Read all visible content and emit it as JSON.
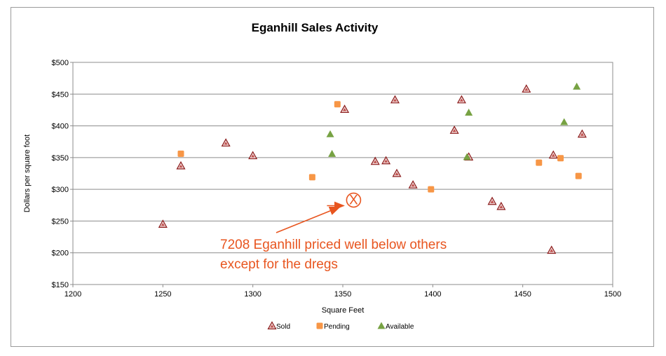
{
  "chart_data": {
    "type": "scatter",
    "title": "Eganhill Sales Activity",
    "xlabel": "Square Feet",
    "ylabel": "Dollars per square foot",
    "xlim": [
      1200,
      1500
    ],
    "ylim": [
      150,
      500
    ],
    "x_ticks": [
      "1200",
      "1250",
      "1300",
      "1350",
      "1400",
      "1450",
      "1500"
    ],
    "y_ticks": [
      "$150",
      "$200",
      "$250",
      "$300",
      "$350",
      "$400",
      "$450",
      "$500"
    ],
    "grid": true,
    "legend_position": "bottom",
    "series": [
      {
        "name": "Sold",
        "color": "#c0504d",
        "marker": "triangle",
        "points": [
          [
            1250,
            245
          ],
          [
            1260,
            337
          ],
          [
            1285,
            373
          ],
          [
            1300,
            353
          ],
          [
            1351,
            426
          ],
          [
            1368,
            344
          ],
          [
            1374,
            345
          ],
          [
            1379,
            441
          ],
          [
            1380,
            325
          ],
          [
            1389,
            307
          ],
          [
            1412,
            393
          ],
          [
            1416,
            441
          ],
          [
            1420,
            351
          ],
          [
            1433,
            281
          ],
          [
            1438,
            273
          ],
          [
            1452,
            458
          ],
          [
            1466,
            204
          ],
          [
            1467,
            354
          ],
          [
            1483,
            387
          ]
        ]
      },
      {
        "name": "Pending",
        "color": "#f79646",
        "marker": "square",
        "points": [
          [
            1260,
            356
          ],
          [
            1333,
            319
          ],
          [
            1347,
            434
          ],
          [
            1399,
            300
          ],
          [
            1459,
            342
          ],
          [
            1471,
            349
          ],
          [
            1481,
            321
          ]
        ]
      },
      {
        "name": "Available",
        "color": "#77a243",
        "marker": "triangle",
        "points": [
          [
            1343,
            387
          ],
          [
            1344,
            356
          ],
          [
            1420,
            421
          ],
          [
            1419,
            351
          ],
          [
            1473,
            406
          ],
          [
            1480,
            462
          ]
        ]
      }
    ],
    "annotation": {
      "text_line1": "7208 Eganhill priced well below others",
      "text_line2": "except for the dregs",
      "marker_label": "X",
      "x": 1356,
      "y": 283,
      "color": "#e8551f"
    }
  }
}
